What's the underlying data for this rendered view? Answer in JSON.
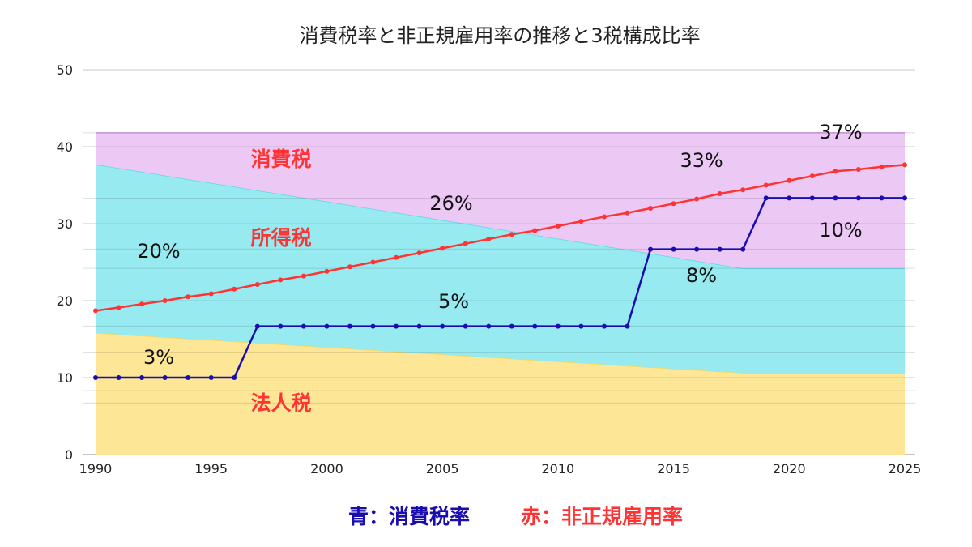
{
  "chart_data": {
    "type": "line",
    "title": "消費税率と非正規雇用率の推移と3税構成比率",
    "xlabel": "",
    "ylabel": "",
    "xlim": [
      1990,
      2025
    ],
    "ylim": [
      0,
      50
    ],
    "x_ticks": [
      "1990",
      "1995",
      "2000",
      "2005",
      "2010",
      "2015",
      "2020",
      "2025"
    ],
    "y_ticks": [
      "0",
      "10",
      "20",
      "30",
      "40",
      "50"
    ],
    "minor_grid_values": [
      6.7,
      8.3,
      13.3,
      16.7,
      24.2,
      26.7,
      33.3,
      41.8
    ],
    "areas": {
      "x": [
        1990,
        2018,
        2025
      ],
      "series": [
        {
          "name": "法人税",
          "values": [
            15.8,
            10.6,
            10.6
          ],
          "color": "#fde796",
          "edge": "#fcd85a"
        },
        {
          "name": "所得税",
          "values": [
            21.9,
            13.6,
            13.6
          ],
          "color": "#96eaf0",
          "edge": "#5ad9e6"
        },
        {
          "name": "消費税",
          "values": [
            4.1,
            17.6,
            17.6
          ],
          "color": "#ecc8f5",
          "edge": "#d79be8"
        }
      ]
    },
    "lines": {
      "x": [
        1990,
        1991,
        1992,
        1993,
        1994,
        1995,
        1996,
        1997,
        1998,
        1999,
        2000,
        2001,
        2002,
        2003,
        2004,
        2005,
        2006,
        2007,
        2008,
        2009,
        2010,
        2011,
        2012,
        2013,
        2014,
        2015,
        2016,
        2017,
        2018,
        2019,
        2020,
        2021,
        2022,
        2023,
        2024,
        2025
      ],
      "series": [
        {
          "name": "消費税率",
          "color": "#1a0db0",
          "values": [
            10,
            10,
            10,
            10,
            10,
            10,
            10,
            16.67,
            16.67,
            16.67,
            16.67,
            16.67,
            16.67,
            16.67,
            16.67,
            16.67,
            16.67,
            16.67,
            16.67,
            16.67,
            16.67,
            16.67,
            16.67,
            16.67,
            26.67,
            26.67,
            26.67,
            26.67,
            26.67,
            33.33,
            33.33,
            33.33,
            33.33,
            33.33,
            33.33,
            33.33
          ]
        },
        {
          "name": "非正規雇用率",
          "color": "#ff3333",
          "values": [
            18.7,
            19.1,
            19.55,
            20.0,
            20.5,
            20.9,
            21.5,
            22.1,
            22.7,
            23.2,
            23.8,
            24.4,
            25.0,
            25.6,
            26.2,
            26.8,
            27.4,
            28.0,
            28.6,
            29.1,
            29.7,
            30.3,
            30.9,
            31.4,
            32.0,
            32.6,
            33.2,
            33.9,
            34.4,
            35.0,
            35.6,
            36.2,
            36.8,
            37.05,
            37.4,
            37.65
          ]
        }
      ]
    },
    "annotations": {
      "area_labels": [
        "消費税",
        "所得税",
        "法人税"
      ],
      "percent_labels": [
        "20%",
        "3%",
        "5%",
        "26%",
        "8%",
        "33%",
        "10%",
        "37%"
      ]
    },
    "legend": {
      "blue": "青：消費税率",
      "red": "赤：非正規雇用率"
    }
  }
}
